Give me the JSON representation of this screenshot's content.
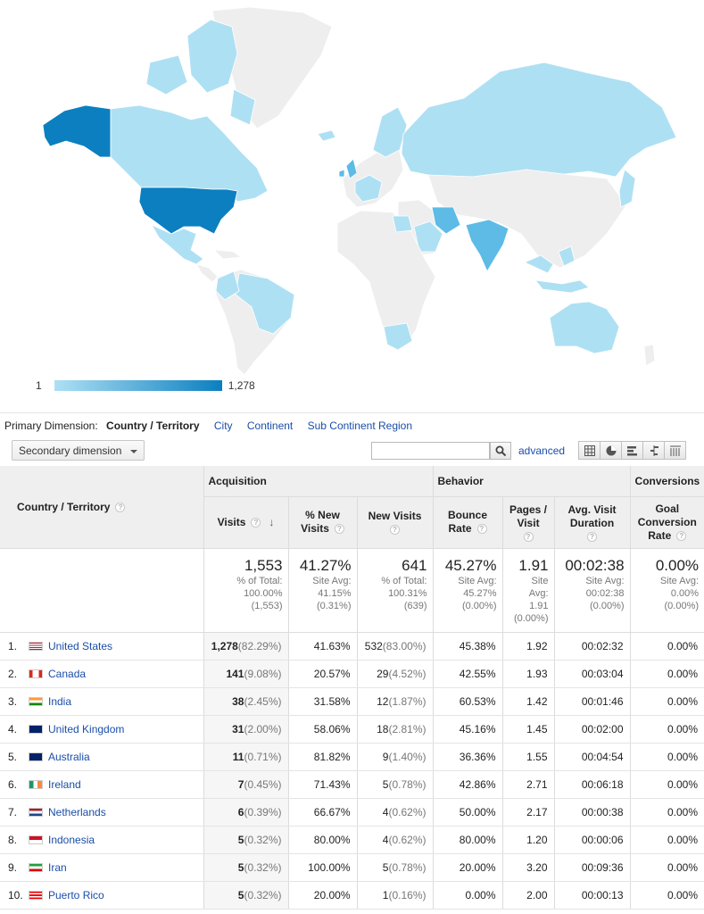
{
  "map": {
    "legend_min": "1",
    "legend_max": "1,278",
    "colors": {
      "max": "#0b7fc0",
      "mid": "#5dbbe6",
      "low": "#aee0f4",
      "none": "#eeeeee"
    }
  },
  "dimension": {
    "label": "Primary Dimension:",
    "active": "Country / Territory",
    "links": [
      "City",
      "Continent",
      "Sub Continent Region"
    ]
  },
  "toolbar": {
    "secondary_dimension": "Secondary dimension",
    "search_value": "",
    "advanced": "advanced"
  },
  "table": {
    "groups": {
      "acquisition": "Acquisition",
      "behavior": "Behavior",
      "conversions": "Conversions"
    },
    "headers": {
      "country": "Country / Territory",
      "visits": "Visits",
      "new_pct": "% New Visits",
      "new_visits": "New Visits",
      "bounce": "Bounce Rate",
      "pages": "Pages / Visit",
      "duration": "Avg. Visit Duration",
      "goal": "Goal Conversion Rate"
    },
    "totals": {
      "visits": {
        "big": "1,553",
        "s1": "% of Total:",
        "s2": "100.00%",
        "s3": "(1,553)"
      },
      "new_pct": {
        "big": "41.27%",
        "s1": "Site Avg:",
        "s2": "41.15%",
        "s3": "(0.31%)"
      },
      "new_visits": {
        "big": "641",
        "s1": "% of Total:",
        "s2": "100.31%",
        "s3": "(639)"
      },
      "bounce": {
        "big": "45.27%",
        "s1": "Site Avg:",
        "s2": "45.27%",
        "s3": "(0.00%)"
      },
      "pages": {
        "big": "1.91",
        "s1": "Site",
        "s2": "Avg:",
        "s3": "1.91",
        "s4": "(0.00%)"
      },
      "duration": {
        "big": "00:02:38",
        "s1": "Site Avg:",
        "s2": "00:02:38",
        "s3": "(0.00%)"
      },
      "goal": {
        "big": "0.00%",
        "s1": "Site Avg:",
        "s2": "0.00%",
        "s3": "(0.00%)"
      }
    },
    "rows": [
      {
        "n": "1.",
        "country": "United States",
        "flag": "us",
        "visits": "1,278",
        "visits_pct": "(82.29%)",
        "new_pct": "41.63%",
        "new_visits": "532",
        "new_visits_pct": "(83.00%)",
        "bounce": "45.38%",
        "pages": "1.92",
        "duration": "00:02:32",
        "goal": "0.00%"
      },
      {
        "n": "2.",
        "country": "Canada",
        "flag": "ca",
        "visits": "141",
        "visits_pct": "(9.08%)",
        "new_pct": "20.57%",
        "new_visits": "29",
        "new_visits_pct": "(4.52%)",
        "bounce": "42.55%",
        "pages": "1.93",
        "duration": "00:03:04",
        "goal": "0.00%"
      },
      {
        "n": "3.",
        "country": "India",
        "flag": "in",
        "visits": "38",
        "visits_pct": "(2.45%)",
        "new_pct": "31.58%",
        "new_visits": "12",
        "new_visits_pct": "(1.87%)",
        "bounce": "60.53%",
        "pages": "1.42",
        "duration": "00:01:46",
        "goal": "0.00%"
      },
      {
        "n": "4.",
        "country": "United Kingdom",
        "flag": "gb",
        "visits": "31",
        "visits_pct": "(2.00%)",
        "new_pct": "58.06%",
        "new_visits": "18",
        "new_visits_pct": "(2.81%)",
        "bounce": "45.16%",
        "pages": "1.45",
        "duration": "00:02:00",
        "goal": "0.00%"
      },
      {
        "n": "5.",
        "country": "Australia",
        "flag": "au",
        "visits": "11",
        "visits_pct": "(0.71%)",
        "new_pct": "81.82%",
        "new_visits": "9",
        "new_visits_pct": "(1.40%)",
        "bounce": "36.36%",
        "pages": "1.55",
        "duration": "00:04:54",
        "goal": "0.00%"
      },
      {
        "n": "6.",
        "country": "Ireland",
        "flag": "ie",
        "visits": "7",
        "visits_pct": "(0.45%)",
        "new_pct": "71.43%",
        "new_visits": "5",
        "new_visits_pct": "(0.78%)",
        "bounce": "42.86%",
        "pages": "2.71",
        "duration": "00:06:18",
        "goal": "0.00%"
      },
      {
        "n": "7.",
        "country": "Netherlands",
        "flag": "nl",
        "visits": "6",
        "visits_pct": "(0.39%)",
        "new_pct": "66.67%",
        "new_visits": "4",
        "new_visits_pct": "(0.62%)",
        "bounce": "50.00%",
        "pages": "2.17",
        "duration": "00:00:38",
        "goal": "0.00%"
      },
      {
        "n": "8.",
        "country": "Indonesia",
        "flag": "id",
        "visits": "5",
        "visits_pct": "(0.32%)",
        "new_pct": "80.00%",
        "new_visits": "4",
        "new_visits_pct": "(0.62%)",
        "bounce": "80.00%",
        "pages": "1.20",
        "duration": "00:00:06",
        "goal": "0.00%"
      },
      {
        "n": "9.",
        "country": "Iran",
        "flag": "ir",
        "visits": "5",
        "visits_pct": "(0.32%)",
        "new_pct": "100.00%",
        "new_visits": "5",
        "new_visits_pct": "(0.78%)",
        "bounce": "20.00%",
        "pages": "3.20",
        "duration": "00:09:36",
        "goal": "0.00%"
      },
      {
        "n": "10.",
        "country": "Puerto Rico",
        "flag": "pr",
        "visits": "5",
        "visits_pct": "(0.32%)",
        "new_pct": "20.00%",
        "new_visits": "1",
        "new_visits_pct": "(0.16%)",
        "bounce": "0.00%",
        "pages": "2.00",
        "duration": "00:00:13",
        "goal": "0.00%"
      }
    ]
  }
}
